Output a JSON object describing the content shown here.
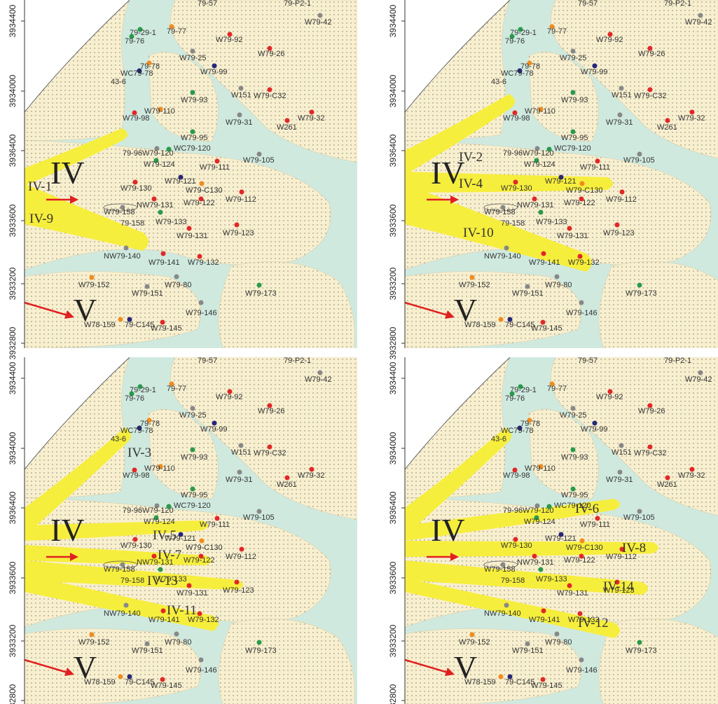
{
  "y_axis_labels": [
    "3934400",
    "3934000",
    "3936400",
    "3933600",
    "3933200",
    "3932800"
  ],
  "zone_labels": [
    "IV",
    "V"
  ],
  "cropped_labels": [
    "79-57",
    "79-P2-1"
  ],
  "panels": [
    {
      "fans": [
        "IV-1",
        "IV-9"
      ]
    },
    {
      "fans": [
        "IV-2",
        "IV-4",
        "IV-10"
      ]
    },
    {
      "fans": [
        "IV-3",
        "IV-5",
        "IV-7",
        "IV-13",
        "IV-11"
      ]
    },
    {
      "fans": [
        "IV-6",
        "IV-8",
        "IV-14",
        "IV-12"
      ]
    }
  ],
  "wells": [
    {
      "name": "W79-42",
      "color": "#888888"
    },
    {
      "name": "79-29-1",
      "color": "#2a9a4a"
    },
    {
      "name": "79-76",
      "color": "#2a9a4a"
    },
    {
      "name": "79-77",
      "color": "#f08c1e"
    },
    {
      "name": "W79-92",
      "color": "#e02828"
    },
    {
      "name": "W79-26",
      "color": "#e02828"
    },
    {
      "name": "W79-25",
      "color": "#888888"
    },
    {
      "name": "79-78",
      "color": "#f08c1e"
    },
    {
      "name": "WC79-78",
      "color": "#26267a"
    },
    {
      "name": "43-6",
      "color": "#26267a"
    },
    {
      "name": "W79-99",
      "color": "#26267a"
    },
    {
      "name": "W151",
      "color": "#888888"
    },
    {
      "name": "W79-C32",
      "color": "#e02828"
    },
    {
      "name": "W79-93",
      "color": "#2a9a4a"
    },
    {
      "name": "W79-110",
      "color": "#f08c1e"
    },
    {
      "name": "W79-98",
      "color": "#e02828"
    },
    {
      "name": "W79-31",
      "color": "#888888"
    },
    {
      "name": "W79-32",
      "color": "#e02828"
    },
    {
      "name": "W261",
      "color": "#e02828"
    },
    {
      "name": "W79-95",
      "color": "#2a9a4a"
    },
    {
      "name": "79-96",
      "color": "#888888"
    },
    {
      "name": "W79-120",
      "color": "#888888"
    },
    {
      "name": "WC79-120",
      "color": "#2a9a4a"
    },
    {
      "name": "W79-124",
      "color": "#2a9a4a"
    },
    {
      "name": "W79-105",
      "color": "#888888"
    },
    {
      "name": "W79-111",
      "color": "#e02828"
    },
    {
      "name": "W79-121",
      "color": "#26267a"
    },
    {
      "name": "W79-130",
      "color": "#e02828"
    },
    {
      "name": "W79-C130",
      "color": "#f08c1e"
    },
    {
      "name": "W79-112",
      "color": "#e02828"
    },
    {
      "name": "NW79-131",
      "color": "#e02828"
    },
    {
      "name": "W79-122",
      "color": "#e02828"
    },
    {
      "name": "W79-158",
      "color": "#888888"
    },
    {
      "name": "79-158",
      "color": "#2a9a4a"
    },
    {
      "name": "W79-133",
      "color": "#2a9a4a"
    },
    {
      "name": "W79-123",
      "color": "#e02828"
    },
    {
      "name": "W79-131",
      "color": "#e02828"
    },
    {
      "name": "NW79-140",
      "color": "#888888"
    },
    {
      "name": "W79-141",
      "color": "#e02828"
    },
    {
      "name": "W79-132",
      "color": "#e02828"
    },
    {
      "name": "W79-152",
      "color": "#f08c1e"
    },
    {
      "name": "W79-80",
      "color": "#888888"
    },
    {
      "name": "W79-151",
      "color": "#888888"
    },
    {
      "name": "W79-173",
      "color": "#2a9a4a"
    },
    {
      "name": "W79-146",
      "color": "#888888"
    },
    {
      "name": "W78-159",
      "color": "#f08c1e"
    },
    {
      "name": "79-C145",
      "color": "#26267a"
    },
    {
      "name": "W79-145",
      "color": "#e02828"
    }
  ]
}
